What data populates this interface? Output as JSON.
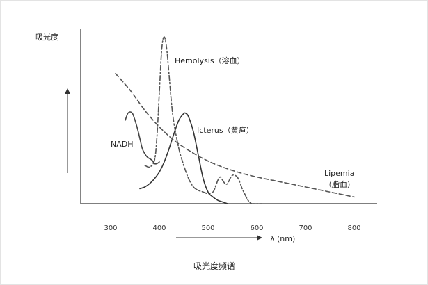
{
  "chart_data": {
    "type": "line",
    "title": "",
    "ylabel": "吸光度",
    "xlabel": "λ (nm)",
    "caption": "吸光度频谱",
    "xlim": [
      240,
      820
    ],
    "ylim": [
      0,
      1.0
    ],
    "x_ticks": [
      300,
      400,
      500,
      600,
      700,
      800
    ],
    "x_tick_labels": [
      "300",
      "400",
      "500",
      "600",
      "700",
      "800"
    ],
    "grid": false,
    "legend": "none",
    "series": [
      {
        "name": "Hemolysis（溶血）",
        "color": "#555555",
        "style": "dashdot",
        "x": [
          370,
          380,
          390,
          395,
          400,
          405,
          410,
          415,
          420,
          425,
          430,
          440,
          450,
          460,
          470,
          480,
          490,
          500,
          510,
          515,
          520,
          525,
          530,
          535,
          540,
          545,
          550,
          555,
          560,
          565,
          570,
          575,
          580,
          585,
          590,
          595,
          600,
          610
        ],
        "y": [
          0.23,
          0.22,
          0.26,
          0.4,
          0.67,
          0.93,
          1.0,
          0.93,
          0.77,
          0.6,
          0.48,
          0.33,
          0.23,
          0.15,
          0.1,
          0.08,
          0.07,
          0.06,
          0.07,
          0.1,
          0.14,
          0.16,
          0.14,
          0.12,
          0.12,
          0.15,
          0.17,
          0.17,
          0.16,
          0.13,
          0.09,
          0.06,
          0.03,
          0.01,
          0.0,
          0.0,
          0.0,
          0.0
        ]
      },
      {
        "name": "NADH",
        "color": "#444444",
        "style": "solid",
        "x": [
          330,
          335,
          340,
          345,
          350,
          355,
          360,
          365,
          370,
          375,
          380,
          385,
          390,
          395,
          400
        ],
        "y": [
          0.5,
          0.54,
          0.55,
          0.54,
          0.5,
          0.45,
          0.39,
          0.33,
          0.3,
          0.28,
          0.27,
          0.26,
          0.24,
          0.24,
          0.25
        ]
      },
      {
        "name": "Icterus（黄疸）",
        "color": "#333333",
        "style": "solid",
        "x": [
          360,
          370,
          380,
          390,
          400,
          410,
          420,
          430,
          440,
          450,
          455,
          460,
          470,
          480,
          490,
          500,
          510,
          520,
          530,
          540
        ],
        "y": [
          0.09,
          0.1,
          0.12,
          0.15,
          0.19,
          0.25,
          0.33,
          0.42,
          0.5,
          0.54,
          0.54,
          0.52,
          0.43,
          0.29,
          0.15,
          0.07,
          0.04,
          0.02,
          0.01,
          0.0
        ]
      },
      {
        "name": "Lipemia\n（脂血）",
        "color": "#555555",
        "style": "dashed",
        "x": [
          310,
          340,
          370,
          400,
          430,
          460,
          490,
          520,
          560,
          600,
          650,
          700,
          750,
          800
        ],
        "y": [
          0.78,
          0.68,
          0.56,
          0.46,
          0.38,
          0.32,
          0.27,
          0.23,
          0.19,
          0.16,
          0.13,
          0.1,
          0.07,
          0.04
        ]
      }
    ]
  }
}
